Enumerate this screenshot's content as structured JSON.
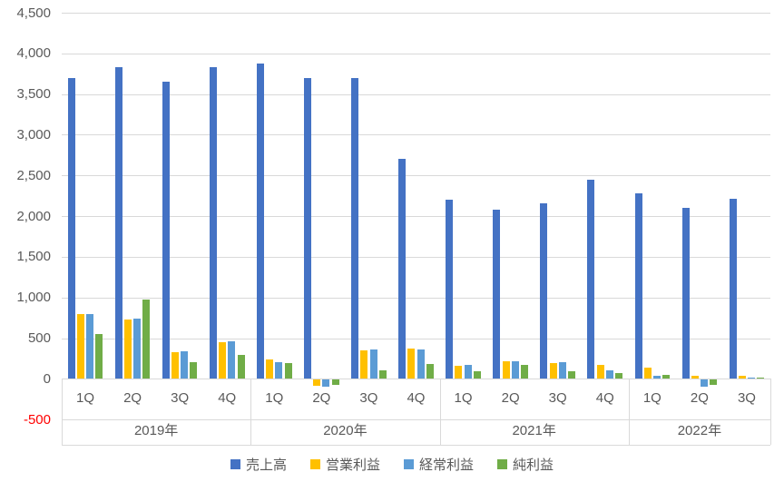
{
  "chart": {
    "background_color": "#FFFFFF",
    "grid_color": "#D9D9D9",
    "axis_box_border_color": "#D9D9D9",
    "tick_label_color": "#595959",
    "negative_tick_color": "#FF0000"
  },
  "chart_data": {
    "type": "bar",
    "title": "",
    "y_axis": {
      "min": -500,
      "max": 4500,
      "step": 500,
      "tick_labels": [
        "4,500",
        "4,000",
        "3,500",
        "3,000",
        "2,500",
        "2,000",
        "1,500",
        "1,000",
        "500",
        "0",
        "-500"
      ],
      "tick_values": [
        4500,
        4000,
        3500,
        3000,
        2500,
        2000,
        1500,
        1000,
        500,
        0,
        -500
      ]
    },
    "x_axis": {
      "groups": [
        {
          "label": "2019年",
          "quarters": [
            "1Q",
            "2Q",
            "3Q",
            "4Q"
          ]
        },
        {
          "label": "2020年",
          "quarters": [
            "1Q",
            "2Q",
            "3Q",
            "4Q"
          ]
        },
        {
          "label": "2021年",
          "quarters": [
            "1Q",
            "2Q",
            "3Q",
            "4Q"
          ]
        },
        {
          "label": "2022年",
          "quarters": [
            "1Q",
            "2Q",
            "3Q"
          ]
        }
      ]
    },
    "series": [
      {
        "name": "売上高",
        "color": "#4472C4",
        "values": [
          3700,
          3830,
          3650,
          3830,
          3880,
          3700,
          3700,
          2700,
          2200,
          2080,
          2160,
          2450,
          2280,
          2100,
          2210
        ]
      },
      {
        "name": "営業利益",
        "color": "#FFC000",
        "values": [
          800,
          730,
          330,
          450,
          240,
          -70,
          350,
          370,
          160,
          220,
          190,
          170,
          140,
          35,
          35
        ]
      },
      {
        "name": "経常利益",
        "color": "#5B9BD5",
        "values": [
          800,
          740,
          340,
          460,
          210,
          -90,
          360,
          360,
          170,
          220,
          200,
          100,
          40,
          -80,
          20
        ]
      },
      {
        "name": "純利益",
        "color": "#70AD47",
        "values": [
          550,
          980,
          210,
          290,
          190,
          -60,
          110,
          180,
          90,
          170,
          90,
          70,
          45,
          -60,
          20
        ]
      }
    ],
    "legend": {
      "position": "bottom",
      "items": [
        "売上高",
        "営業利益",
        "経常利益",
        "純利益"
      ]
    },
    "grid": true
  }
}
